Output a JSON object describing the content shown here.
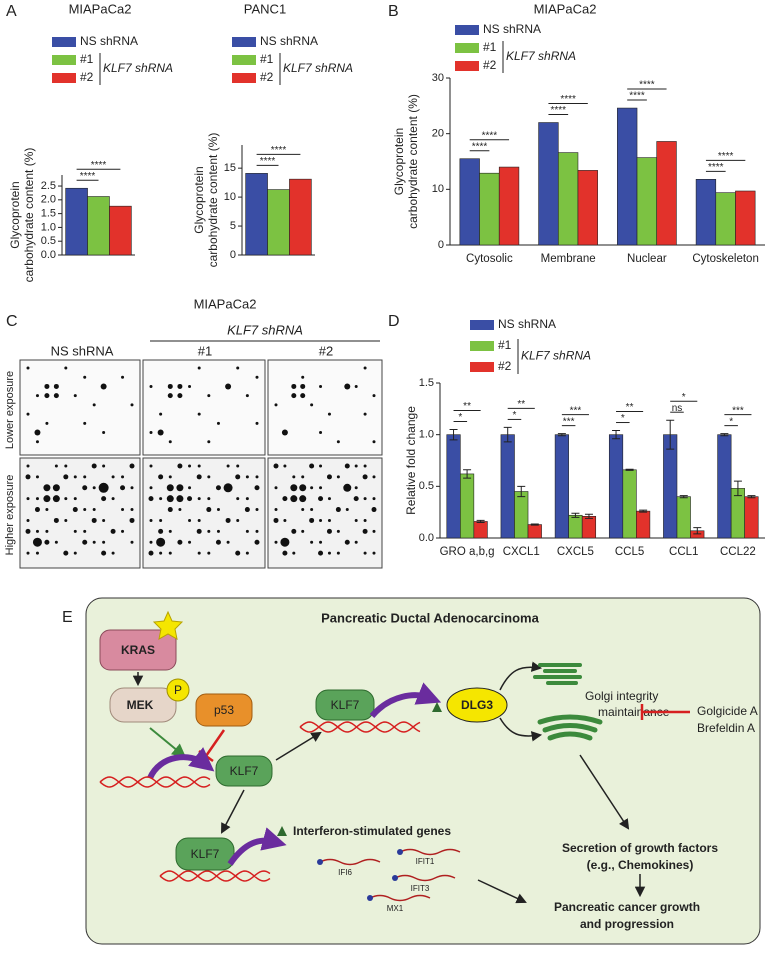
{
  "panels": {
    "a": "A",
    "b": "B",
    "c": "C",
    "d": "D",
    "e": "E"
  },
  "chart_data": [
    {
      "type": "bar",
      "title": "MIAPaCa2",
      "ylabel": [
        "Glycoprotein",
        "carbohydrate content (%)"
      ],
      "categories": [
        null
      ],
      "series": [
        {
          "name": "NS shRNA",
          "color": "#3a4ea5",
          "values": [
            2.42
          ]
        },
        {
          "name": "#1",
          "color": "#7cc242",
          "values": [
            2.12
          ]
        },
        {
          "name": "#2",
          "color": "#e2322b",
          "values": [
            1.77
          ]
        }
      ],
      "group_label": "KLF7 shRNA",
      "significance": [
        [
          "****",
          "****"
        ]
      ],
      "ylim": [
        0,
        2.9
      ],
      "yticks": [
        {
          "value": 0,
          "label": "0.0"
        },
        0.5,
        {
          "value": 1,
          "label": "1.0"
        },
        1.5,
        {
          "value": 2,
          "label": "2.0"
        },
        2.5
      ]
    },
    {
      "type": "bar",
      "title": "PANC1",
      "ylabel": [
        "Glycoprotein",
        "carbohydrate content (%)"
      ],
      "categories": [
        null
      ],
      "series": [
        {
          "name": "NS shRNA",
          "color": "#3a4ea5",
          "values": [
            14.1
          ]
        },
        {
          "name": "#1",
          "color": "#7cc242",
          "values": [
            11.3
          ]
        },
        {
          "name": "#2",
          "color": "#e2322b",
          "values": [
            13.1
          ]
        }
      ],
      "group_label": "KLF7 shRNA",
      "significance": [
        [
          "****",
          "****"
        ]
      ],
      "ylim": [
        0,
        19
      ],
      "yticks": [
        0,
        5,
        10,
        15
      ]
    },
    {
      "type": "bar",
      "title": "MIAPaCa2",
      "ylabel": [
        "Glycoprotein",
        "carbohydrate content (%)"
      ],
      "categories": [
        "Cytosolic",
        "Membrane",
        "Nuclear",
        "Cytoskeleton"
      ],
      "series": [
        {
          "name": "NS shRNA",
          "color": "#3a4ea5",
          "values": [
            15.5,
            22.0,
            24.6,
            11.8
          ]
        },
        {
          "name": "#1",
          "color": "#7cc242",
          "values": [
            12.9,
            16.6,
            15.7,
            9.4
          ]
        },
        {
          "name": "#2",
          "color": "#e2322b",
          "values": [
            14.0,
            13.4,
            18.6,
            9.7
          ]
        }
      ],
      "group_label": "KLF7 shRNA",
      "significance": [
        [
          "****",
          "****"
        ],
        [
          "****",
          "****"
        ],
        [
          "****",
          "****"
        ],
        [
          "****",
          "****"
        ]
      ],
      "ylim": [
        0,
        30
      ],
      "yticks": [
        0,
        10,
        20,
        30
      ]
    },
    {
      "type": "bar",
      "ylabel": [
        "Relative fold change"
      ],
      "categories": [
        "GRO a,b,g",
        "CXCL1",
        "CXCL5",
        "CCL5",
        "CCL1",
        "CCL22"
      ],
      "series": [
        {
          "name": "NS shRNA",
          "color": "#3a4ea5",
          "values": [
            1.0,
            1.0,
            1.0,
            1.0,
            1.0,
            1.0
          ],
          "errors": [
            0.05,
            0.07,
            0.01,
            0.04,
            0.14,
            0.01
          ]
        },
        {
          "name": "#1",
          "color": "#7cc242",
          "values": [
            0.62,
            0.45,
            0.22,
            0.66,
            0.4,
            0.48
          ],
          "errors": [
            0.04,
            0.05,
            0.02,
            0.005,
            0.01,
            0.07
          ]
        },
        {
          "name": "#2",
          "color": "#e2322b",
          "values": [
            0.16,
            0.13,
            0.21,
            0.26,
            0.07,
            0.4
          ],
          "errors": [
            0.01,
            0.005,
            0.02,
            0.01,
            0.03,
            0.01
          ]
        }
      ],
      "group_label": "KLF7 shRNA",
      "significance": [
        [
          "*",
          "**"
        ],
        [
          "*",
          "**"
        ],
        [
          "***",
          "***"
        ],
        [
          "*",
          "**"
        ],
        [
          "ns",
          "*"
        ],
        [
          "*",
          "***"
        ]
      ],
      "ylim": [
        0,
        1.5
      ],
      "yticks": [
        {
          "value": 0,
          "label": "0.0"
        },
        0.5,
        {
          "value": 1,
          "label": "1.0"
        },
        1.5
      ]
    }
  ],
  "blot": {
    "title": "MIAPaCa2",
    "group_label": "KLF7 shRNA",
    "lanes": [
      "NS shRNA",
      "#1",
      "#2"
    ],
    "rows": [
      "Lower exposure",
      "Higher exposure"
    ]
  },
  "diagram": {
    "title": "Pancreatic Ductal Adenocarcinoma",
    "kras": "KRAS",
    "mek": "MEK",
    "phospho": "P",
    "p53": "p53",
    "klf7": [
      "KLF7",
      "KLF7",
      "KLF7"
    ],
    "dlg3": "DLG3",
    "golgi": [
      "Golgi integrity",
      "maintainance"
    ],
    "inhibitors": [
      "Golgicide A",
      "Brefeldin A"
    ],
    "isg": "Interferon-stimulated genes",
    "genes": [
      "IFI6",
      "IFIT1",
      "IFIT3",
      "MX1"
    ],
    "secretion": [
      "Secretion of growth factors",
      "(e.g., Chemokines)"
    ],
    "outcome": [
      "Pancreatic cancer growth",
      "and progression"
    ]
  }
}
